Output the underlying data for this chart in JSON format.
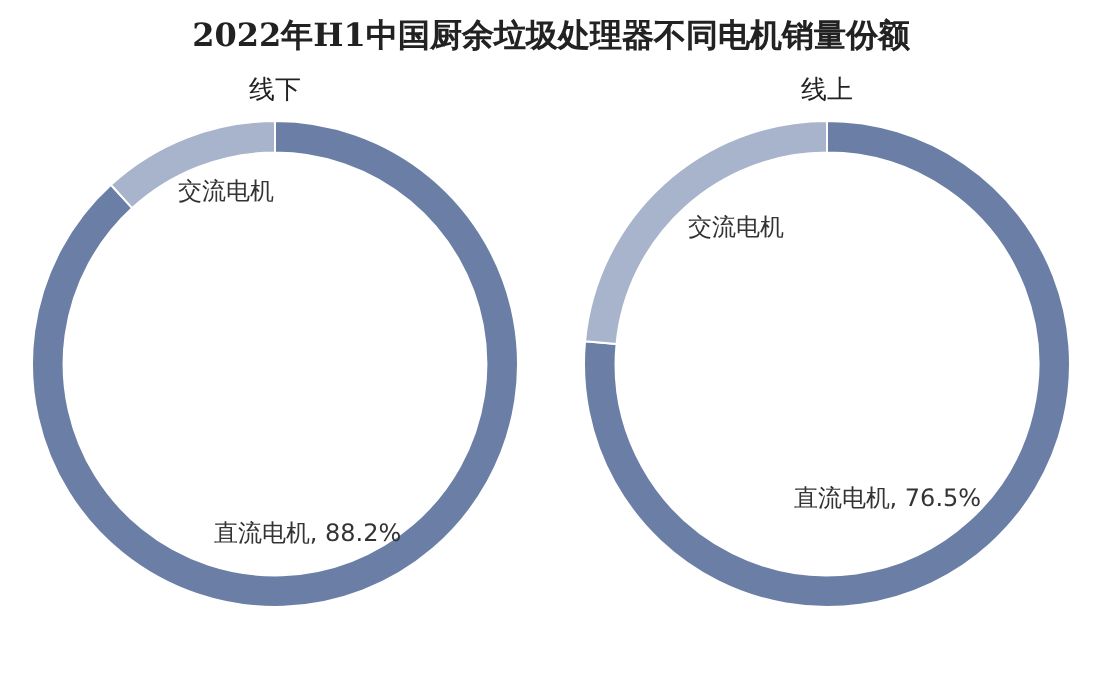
{
  "chart_data": [
    {
      "type": "donut",
      "title": "2022年H1中国厨余垃圾处理器不同电机销量份额",
      "subtitle": "线下",
      "categories": [
        "直流电机",
        "交流电机"
      ],
      "values": [
        88.2,
        11.8
      ],
      "colors": [
        "#6b7ea6",
        "#a8b4cc"
      ],
      "value_labels": [
        "88.2%",
        null
      ]
    },
    {
      "type": "donut",
      "subtitle": "线上",
      "categories": [
        "直流电机",
        "交流电机"
      ],
      "values": [
        76.5,
        23.5
      ],
      "colors": [
        "#6b7ea6",
        "#a8b4cc"
      ],
      "value_labels": [
        "76.5%",
        null
      ]
    }
  ]
}
